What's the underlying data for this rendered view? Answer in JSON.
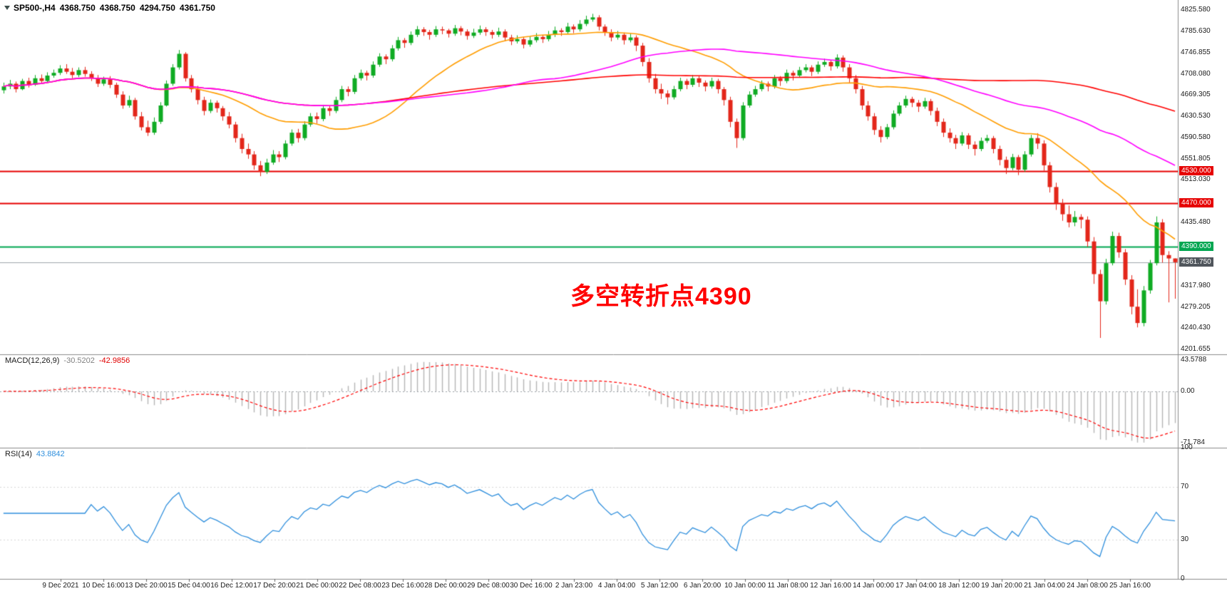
{
  "header": {
    "symbol": "SP500-,H4",
    "open": "4368.750",
    "high": "4368.750",
    "low": "4294.750",
    "close": "4361.750"
  },
  "annotation": {
    "text": "多空转折点4390",
    "color": "#ff0000"
  },
  "colors": {
    "background": "#ffffff",
    "bull_candle": "#0fab23",
    "bear_candle": "#e3261a",
    "ma_fast_orange": "#ff9d00",
    "ma_medium_magenta": "#ff00ff",
    "ma_slow_red": "#ff0000",
    "level_red": "#e60000",
    "level_green": "#00a651",
    "current_price_line": "#9fa6ad",
    "current_price_bg": "#50565c",
    "macd_histogram": "#b6b6b6",
    "macd_signal": "#ff0000",
    "rsi_line": "#2f8fdd",
    "divider": "#8c8c8c"
  },
  "levels": [
    {
      "value": 4530.0,
      "label": "4530.000",
      "type": "resistance",
      "color_key": "level_red"
    },
    {
      "value": 4470.0,
      "label": "4470.000",
      "type": "resistance",
      "color_key": "level_red"
    },
    {
      "value": 4390.0,
      "label": "4390.000",
      "type": "pivot",
      "color_key": "level_green"
    }
  ],
  "current_price": {
    "value": 4361.75,
    "label": "4361.750"
  },
  "price_axis": {
    "ticks": [
      "4825.580",
      "4785.630",
      "4746.855",
      "4708.080",
      "4669.305",
      "4630.530",
      "4590.580",
      "4551.805",
      "4513.030",
      "4435.480",
      "4317.980",
      "4279.205",
      "4240.430",
      "4201.655"
    ]
  },
  "time_axis": {
    "labels": [
      "9 Dec 2021",
      "10 Dec 16:00",
      "13 Dec 20:00",
      "15 Dec 04:00",
      "16 Dec 12:00",
      "17 Dec 20:00",
      "21 Dec 00:00",
      "22 Dec 08:00",
      "23 Dec 16:00",
      "28 Dec 00:00",
      "29 Dec 08:00",
      "30 Dec 16:00",
      "2 Jan 23:00",
      "4 Jan 04:00",
      "5 Jan 12:00",
      "6 Jan 20:00",
      "10 Jan 00:00",
      "11 Jan 08:00",
      "12 Jan 16:00",
      "14 Jan 00:00",
      "17 Jan 04:00",
      "18 Jan 12:00",
      "19 Jan 20:00",
      "21 Jan 04:00",
      "24 Jan 08:00",
      "25 Jan 16:00"
    ]
  },
  "chart_data": {
    "type": "candlestick",
    "symbol": "SP500-",
    "timeframe": "H4",
    "title": "SP500-,H4 4368.750 4368.750 4294.750 4361.750",
    "price_range": [
      4201.655,
      4825.58
    ],
    "grid": false,
    "ohlc": [
      [
        4678,
        4692,
        4672,
        4685
      ],
      [
        4685,
        4697,
        4680,
        4690
      ],
      [
        4690,
        4694,
        4674,
        4680
      ],
      [
        4680,
        4699,
        4678,
        4695
      ],
      [
        4695,
        4701,
        4683,
        4688
      ],
      [
        4688,
        4706,
        4686,
        4700
      ],
      [
        4700,
        4707,
        4690,
        4695
      ],
      [
        4695,
        4711,
        4692,
        4705
      ],
      [
        4705,
        4716,
        4701,
        4710
      ],
      [
        4710,
        4724,
        4706,
        4718
      ],
      [
        4718,
        4726,
        4708,
        4712
      ],
      [
        4712,
        4719,
        4700,
        4706
      ],
      [
        4706,
        4720,
        4702,
        4715
      ],
      [
        4715,
        4721,
        4703,
        4708
      ],
      [
        4708,
        4713,
        4695,
        4700
      ],
      [
        4700,
        4706,
        4684,
        4690
      ],
      [
        4690,
        4703,
        4686,
        4698
      ],
      [
        4698,
        4704,
        4682,
        4688
      ],
      [
        4688,
        4692,
        4664,
        4670
      ],
      [
        4670,
        4676,
        4644,
        4650
      ],
      [
        4650,
        4668,
        4646,
        4660
      ],
      [
        4660,
        4664,
        4624,
        4630
      ],
      [
        4630,
        4638,
        4604,
        4610
      ],
      [
        4610,
        4622,
        4594,
        4600
      ],
      [
        4600,
        4628,
        4596,
        4620
      ],
      [
        4620,
        4656,
        4616,
        4650
      ],
      [
        4650,
        4696,
        4648,
        4690
      ],
      [
        4690,
        4726,
        4686,
        4720
      ],
      [
        4720,
        4752,
        4716,
        4745
      ],
      [
        4745,
        4748,
        4694,
        4700
      ],
      [
        4700,
        4706,
        4674,
        4680
      ],
      [
        4680,
        4686,
        4652,
        4660
      ],
      [
        4660,
        4666,
        4632,
        4640
      ],
      [
        4640,
        4661,
        4636,
        4655
      ],
      [
        4655,
        4659,
        4637,
        4645
      ],
      [
        4645,
        4649,
        4622,
        4630
      ],
      [
        4630,
        4638,
        4608,
        4615
      ],
      [
        4615,
        4620,
        4582,
        4590
      ],
      [
        4590,
        4598,
        4562,
        4570
      ],
      [
        4570,
        4580,
        4552,
        4560
      ],
      [
        4560,
        4566,
        4532,
        4540
      ],
      [
        4540,
        4548,
        4520,
        4528
      ],
      [
        4528,
        4552,
        4524,
        4545
      ],
      [
        4545,
        4568,
        4541,
        4560
      ],
      [
        4560,
        4566,
        4546,
        4555
      ],
      [
        4555,
        4586,
        4551,
        4580
      ],
      [
        4580,
        4606,
        4576,
        4600
      ],
      [
        4600,
        4607,
        4582,
        4590
      ],
      [
        4590,
        4621,
        4586,
        4615
      ],
      [
        4615,
        4636,
        4611,
        4630
      ],
      [
        4630,
        4637,
        4617,
        4625
      ],
      [
        4625,
        4651,
        4621,
        4645
      ],
      [
        4645,
        4649,
        4631,
        4640
      ],
      [
        4640,
        4666,
        4636,
        4660
      ],
      [
        4660,
        4686,
        4656,
        4680
      ],
      [
        4680,
        4685,
        4667,
        4675
      ],
      [
        4675,
        4706,
        4671,
        4700
      ],
      [
        4700,
        4716,
        4696,
        4710
      ],
      [
        4710,
        4714,
        4696,
        4705
      ],
      [
        4705,
        4731,
        4701,
        4725
      ],
      [
        4725,
        4746,
        4721,
        4740
      ],
      [
        4740,
        4744,
        4726,
        4735
      ],
      [
        4735,
        4761,
        4731,
        4755
      ],
      [
        4755,
        4776,
        4751,
        4770
      ],
      [
        4770,
        4774,
        4756,
        4765
      ],
      [
        4765,
        4786,
        4761,
        4780
      ],
      [
        4780,
        4796,
        4776,
        4790
      ],
      [
        4790,
        4794,
        4778,
        4785
      ],
      [
        4785,
        4789,
        4771,
        4780
      ],
      [
        4780,
        4796,
        4776,
        4790
      ],
      [
        4790,
        4795,
        4781,
        4788
      ],
      [
        4788,
        4791,
        4775,
        4782
      ],
      [
        4782,
        4798,
        4778,
        4792
      ],
      [
        4792,
        4796,
        4779,
        4786
      ],
      [
        4786,
        4790,
        4771,
        4778
      ],
      [
        4778,
        4791,
        4774,
        4784
      ],
      [
        4784,
        4797,
        4780,
        4790
      ],
      [
        4790,
        4794,
        4778,
        4785
      ],
      [
        4785,
        4789,
        4773,
        4780
      ],
      [
        4780,
        4793,
        4776,
        4786
      ],
      [
        4786,
        4790,
        4768,
        4775
      ],
      [
        4775,
        4780,
        4761,
        4768
      ],
      [
        4768,
        4779,
        4764,
        4772
      ],
      [
        4772,
        4776,
        4755,
        4762
      ],
      [
        4762,
        4777,
        4758,
        4770
      ],
      [
        4770,
        4783,
        4766,
        4776
      ],
      [
        4776,
        4780,
        4765,
        4772
      ],
      [
        4772,
        4787,
        4768,
        4780
      ],
      [
        4780,
        4795,
        4776,
        4788
      ],
      [
        4788,
        4792,
        4778,
        4785
      ],
      [
        4785,
        4802,
        4781,
        4795
      ],
      [
        4795,
        4799,
        4783,
        4790
      ],
      [
        4790,
        4807,
        4786,
        4800
      ],
      [
        4800,
        4815,
        4796,
        4808
      ],
      [
        4808,
        4818.5,
        4804,
        4812
      ],
      [
        4812,
        4816,
        4788,
        4795
      ],
      [
        4795,
        4799,
        4778,
        4785
      ],
      [
        4785,
        4790,
        4768,
        4775
      ],
      [
        4775,
        4787,
        4771,
        4780
      ],
      [
        4780,
        4784,
        4762,
        4770
      ],
      [
        4770,
        4782,
        4766,
        4775
      ],
      [
        4775,
        4779,
        4750,
        4760
      ],
      [
        4760,
        4765,
        4722,
        4730
      ],
      [
        4730,
        4737,
        4692,
        4700
      ],
      [
        4700,
        4708,
        4672,
        4680
      ],
      [
        4680,
        4690,
        4662,
        4672
      ],
      [
        4672,
        4678,
        4652,
        4665
      ],
      [
        4665,
        4686,
        4661,
        4680
      ],
      [
        4680,
        4701,
        4676,
        4695
      ],
      [
        4695,
        4699,
        4680,
        4688
      ],
      [
        4688,
        4706,
        4684,
        4700
      ],
      [
        4700,
        4704,
        4684,
        4692
      ],
      [
        4692,
        4696,
        4676,
        4685
      ],
      [
        4685,
        4701,
        4681,
        4695
      ],
      [
        4695,
        4699,
        4672,
        4680
      ],
      [
        4680,
        4684,
        4650,
        4660
      ],
      [
        4660,
        4666,
        4610,
        4620
      ],
      [
        4620,
        4626,
        4572,
        4590
      ],
      [
        4590,
        4656,
        4586,
        4650
      ],
      [
        4650,
        4676,
        4646,
        4670
      ],
      [
        4670,
        4686,
        4666,
        4680
      ],
      [
        4680,
        4696,
        4676,
        4690
      ],
      [
        4690,
        4694,
        4676,
        4685
      ],
      [
        4685,
        4706,
        4681,
        4700
      ],
      [
        4700,
        4704,
        4686,
        4695
      ],
      [
        4695,
        4716,
        4691,
        4710
      ],
      [
        4710,
        4714,
        4696,
        4705
      ],
      [
        4705,
        4721,
        4701,
        4715
      ],
      [
        4715,
        4726,
        4711,
        4720
      ],
      [
        4720,
        4724,
        4704,
        4712
      ],
      [
        4712,
        4731,
        4708,
        4725
      ],
      [
        4725,
        4736,
        4721,
        4730
      ],
      [
        4730,
        4734,
        4714,
        4722
      ],
      [
        4722,
        4744,
        4718,
        4738
      ],
      [
        4738,
        4742,
        4712,
        4720
      ],
      [
        4720,
        4726,
        4692,
        4700
      ],
      [
        4700,
        4706,
        4672,
        4680
      ],
      [
        4680,
        4686,
        4642,
        4650
      ],
      [
        4650,
        4658,
        4622,
        4630
      ],
      [
        4630,
        4636,
        4596,
        4605
      ],
      [
        4605,
        4612,
        4582,
        4592
      ],
      [
        4592,
        4616,
        4588,
        4610
      ],
      [
        4610,
        4641,
        4606,
        4635
      ],
      [
        4635,
        4656,
        4631,
        4650
      ],
      [
        4650,
        4668,
        4646,
        4662
      ],
      [
        4662,
        4666,
        4647,
        4655
      ],
      [
        4655,
        4660,
        4638,
        4648
      ],
      [
        4648,
        4664,
        4644,
        4658
      ],
      [
        4658,
        4662,
        4632,
        4640
      ],
      [
        4640,
        4646,
        4612,
        4620
      ],
      [
        4620,
        4626,
        4592,
        4600
      ],
      [
        4600,
        4608,
        4582,
        4590
      ],
      [
        4590,
        4596,
        4570,
        4580
      ],
      [
        4580,
        4601,
        4576,
        4595
      ],
      [
        4595,
        4599,
        4570,
        4578
      ],
      [
        4578,
        4584,
        4558,
        4570
      ],
      [
        4570,
        4591,
        4566,
        4585
      ],
      [
        4585,
        4596,
        4581,
        4590
      ],
      [
        4590,
        4594,
        4562,
        4570
      ],
      [
        4570,
        4576,
        4540,
        4550
      ],
      [
        4550,
        4556,
        4524,
        4535
      ],
      [
        4535,
        4561,
        4531,
        4555
      ],
      [
        4555,
        4559,
        4522,
        4532
      ],
      [
        4532,
        4566,
        4528,
        4560
      ],
      [
        4560,
        4596,
        4556,
        4590
      ],
      [
        4590,
        4599,
        4570,
        4580
      ],
      [
        4580,
        4586,
        4530,
        4540
      ],
      [
        4540,
        4546,
        4490,
        4500
      ],
      [
        4500,
        4508,
        4458,
        4470
      ],
      [
        4470,
        4478,
        4438,
        4450
      ],
      [
        4450,
        4466,
        4426,
        4435
      ],
      [
        4435,
        4456,
        4428,
        4445
      ],
      [
        4445,
        4450,
        4424,
        4440
      ],
      [
        4440,
        4446,
        4390,
        4400
      ],
      [
        4400,
        4408,
        4322,
        4340
      ],
      [
        4340,
        4348,
        4222.6,
        4290
      ],
      [
        4290,
        4368,
        4284,
        4360
      ],
      [
        4360,
        4418,
        4356,
        4410
      ],
      [
        4410,
        4416,
        4370,
        4380
      ],
      [
        4380,
        4386,
        4320,
        4330
      ],
      [
        4330,
        4338,
        4266,
        4280
      ],
      [
        4280,
        4312,
        4242,
        4250
      ],
      [
        4250,
        4318,
        4244,
        4310
      ],
      [
        4310,
        4366,
        4304,
        4360
      ],
      [
        4360,
        4446,
        4356,
        4435
      ],
      [
        4435,
        4441,
        4361,
        4375
      ],
      [
        4375,
        4382,
        4288,
        4368.75
      ],
      [
        4368.75,
        4368.75,
        4294.75,
        4361.75
      ]
    ],
    "moving_averages": [
      {
        "name": "ma-fast-orange",
        "period": 24,
        "color_key": "ma_fast_orange"
      },
      {
        "name": "ma-medium-magenta",
        "period": 60,
        "color_key": "ma_medium_magenta"
      },
      {
        "name": "ma-slow-red",
        "period": 120,
        "color_key": "ma_slow_red"
      }
    ],
    "indicators": {
      "macd": {
        "label": "MACD(12,26,9)",
        "fast": 12,
        "slow": 26,
        "signal": 9,
        "value": "-30.5202",
        "signal_value": "-42.9856",
        "axis": {
          "max": 43.5788,
          "max_label": "43.5788",
          "zero_label": "0.00",
          "min": -71.784,
          "min_label": "-71.784"
        }
      },
      "rsi": {
        "label": "RSI(14)",
        "period": 14,
        "value": "43.8842",
        "axis_labels": [
          {
            "v": 100,
            "label": "100"
          },
          {
            "v": 70,
            "label": "70"
          },
          {
            "v": 30,
            "label": "30"
          },
          {
            "v": 0,
            "label": "0"
          }
        ]
      }
    }
  }
}
